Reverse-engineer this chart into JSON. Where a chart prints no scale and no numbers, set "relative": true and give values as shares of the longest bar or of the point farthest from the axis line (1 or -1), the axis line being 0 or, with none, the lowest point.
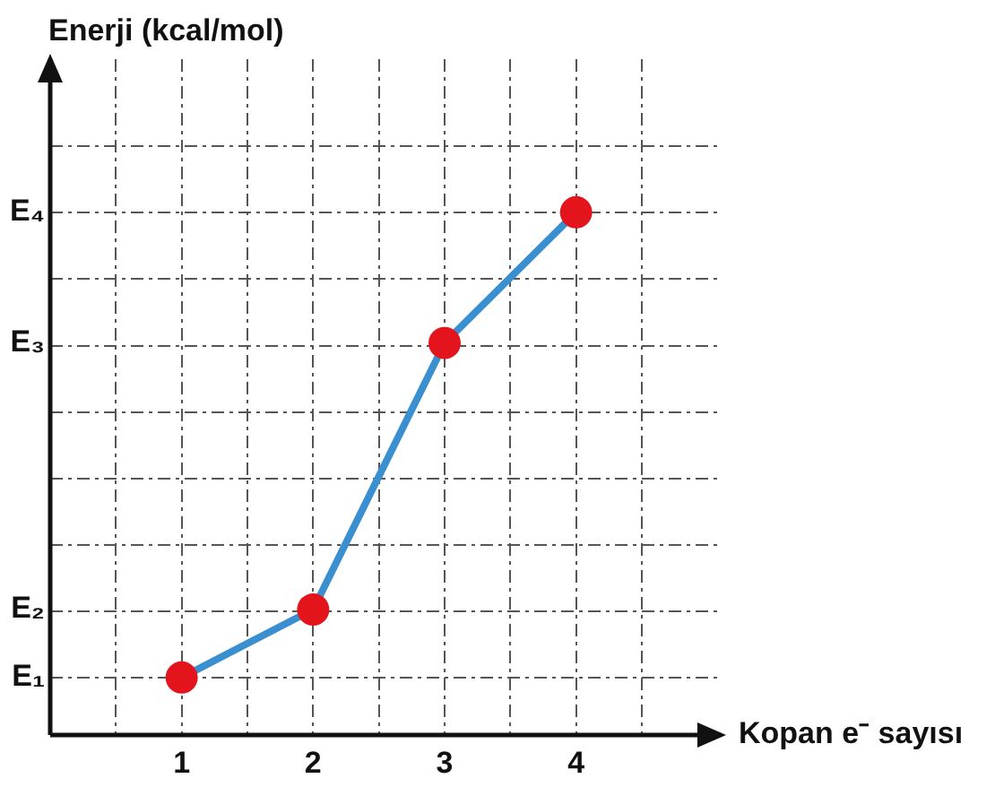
{
  "chart_data": {
    "type": "line",
    "xlabel": "Kopan e⁻ sayısı",
    "x": [
      1,
      2,
      3,
      4
    ],
    "series": [
      {
        "color": "#3a8fd0",
        "colors": [
          "#e3141b",
          "#e3141b",
          "#e3141b",
          "#e3141b"
        ],
        "values": [
          0.11,
          0.24,
          0.75,
          1
        ]
      }
    ],
    "relative": true,
    "annotations": [
      "Enerji (kcal/mol)",
      "E₁",
      "E₂",
      "E₃",
      "E₄"
    ],
    "xlim": [
      0,
      5.1
    ],
    "xticks": [
      {
        "value": 0.5,
        "label": null
      },
      1,
      {
        "value": 1.5,
        "label": null
      },
      2,
      {
        "value": 2.5,
        "label": null
      },
      3,
      {
        "value": 3.5,
        "label": null
      },
      4,
      {
        "value": 4.5,
        "label": null
      }
    ],
    "grid": true,
    "marker": "circle",
    "line_style": "solid"
  }
}
